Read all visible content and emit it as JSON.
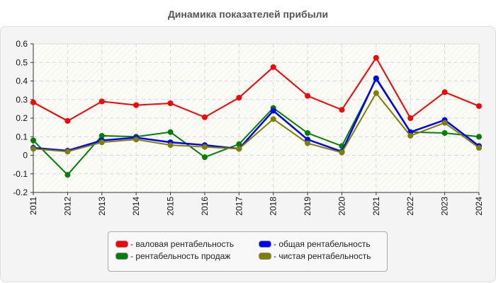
{
  "chart_data": {
    "type": "line",
    "title": "Динамика показателей прибыли",
    "xlabel": "",
    "ylabel": "",
    "ylim": [
      -0.2,
      0.6
    ],
    "yticks": [
      "0.6",
      "0.5",
      "0.4",
      "0.3",
      "0.2",
      "0.1",
      "0",
      "-0.1",
      "-0.2"
    ],
    "grid": true,
    "legend_position": "bottom",
    "categories": [
      "2011",
      "2012",
      "2013",
      "2014",
      "2015",
      "2016",
      "2017",
      "2018",
      "2019",
      "2020",
      "2021",
      "2022",
      "2023",
      "2024"
    ],
    "series": [
      {
        "name": "валовая рентабельность",
        "color": "#ff0000",
        "values": [
          0.285,
          0.185,
          0.29,
          0.27,
          0.28,
          0.205,
          0.31,
          0.475,
          0.32,
          0.245,
          0.525,
          0.2,
          0.34,
          0.265
        ]
      },
      {
        "name": "общая рентабельность",
        "color": "#0000ff",
        "values": [
          0.04,
          0.025,
          0.08,
          0.095,
          0.07,
          0.055,
          0.035,
          0.24,
          0.085,
          0.02,
          0.415,
          0.125,
          0.19,
          0.05
        ]
      },
      {
        "name": "рентабельность продаж",
        "color": "#008000",
        "values": [
          0.08,
          -0.105,
          0.105,
          0.1,
          0.125,
          -0.01,
          0.06,
          0.255,
          0.12,
          0.05,
          0.41,
          0.125,
          0.12,
          0.1
        ]
      },
      {
        "name": "чистая рентабельность",
        "color": "#808000",
        "values": [
          0.035,
          0.02,
          0.07,
          0.085,
          0.055,
          0.045,
          0.035,
          0.195,
          0.065,
          0.015,
          0.335,
          0.105,
          0.175,
          0.04
        ]
      }
    ]
  },
  "legend": [
    {
      "label": "- валовая рентабельность",
      "color": "#ff0000"
    },
    {
      "label": "- общая рентабельность",
      "color": "#0000ff"
    },
    {
      "label": "- рентабельность продаж",
      "color": "#008000"
    },
    {
      "label": "- чистая рентабельность",
      "color": "#808000"
    }
  ]
}
